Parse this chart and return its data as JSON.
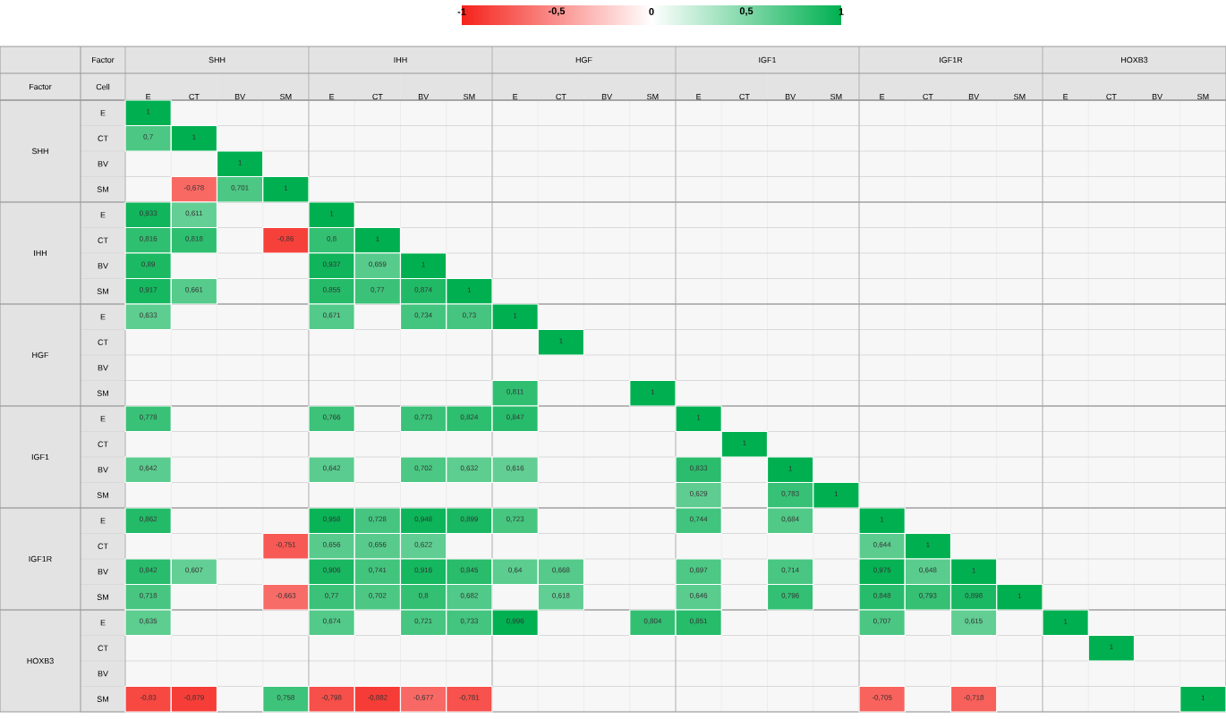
{
  "chart_data": {
    "type": "heatmap",
    "xlabel": "Factor",
    "ylabel": "Factor",
    "annotations": [
      "Cell",
      "SHH",
      "IHH",
      "HGF",
      "IGF1",
      "IGF1R",
      "HOXB3"
    ],
    "categories": [
      "E",
      "CT",
      "BV",
      "SM",
      "E",
      "CT",
      "BV",
      "SM",
      "E",
      "CT",
      "BV",
      "SM",
      "E",
      "CT",
      "BV",
      "SM",
      "E",
      "CT",
      "BV",
      "SM",
      "E",
      "CT",
      "BV",
      "SM"
    ],
    "y_categories": [
      "E",
      "CT",
      "BV",
      "SM",
      "E",
      "CT",
      "BV",
      "SM",
      "E",
      "CT",
      "BV",
      "SM",
      "E",
      "CT",
      "BV",
      "SM",
      "E",
      "CT",
      "BV",
      "SM",
      "E",
      "CT",
      "BV",
      "SM"
    ],
    "clim": [
      -1,
      1
    ],
    "cticks": [
      {
        "value": -1,
        "label": "-1"
      },
      {
        "value": -0.5,
        "label": "-0,5"
      },
      {
        "value": 0,
        "label": "0"
      },
      {
        "value": 0.5,
        "label": "0,5"
      },
      {
        "value": 1,
        "label": "1"
      }
    ],
    "cells": [
      [
        1,
        null,
        null,
        null,
        null,
        null,
        null,
        null,
        null,
        null,
        null,
        null,
        null,
        null,
        null,
        null,
        null,
        null,
        null,
        null,
        null,
        null,
        null,
        null
      ],
      [
        0.7,
        1,
        null,
        null,
        null,
        null,
        null,
        null,
        null,
        null,
        null,
        null,
        null,
        null,
        null,
        null,
        null,
        null,
        null,
        null,
        null,
        null,
        null,
        null
      ],
      [
        null,
        null,
        1,
        null,
        null,
        null,
        null,
        null,
        null,
        null,
        null,
        null,
        null,
        null,
        null,
        null,
        null,
        null,
        null,
        null,
        null,
        null,
        null,
        null
      ],
      [
        null,
        -0.678,
        0.701,
        1,
        null,
        null,
        null,
        null,
        null,
        null,
        null,
        null,
        null,
        null,
        null,
        null,
        null,
        null,
        null,
        null,
        null,
        null,
        null,
        null
      ],
      [
        0.933,
        0.611,
        null,
        null,
        1,
        null,
        null,
        null,
        null,
        null,
        null,
        null,
        null,
        null,
        null,
        null,
        null,
        null,
        null,
        null,
        null,
        null,
        null,
        null
      ],
      [
        0.816,
        0.818,
        null,
        -0.86,
        0.8,
        1,
        null,
        null,
        null,
        null,
        null,
        null,
        null,
        null,
        null,
        null,
        null,
        null,
        null,
        null,
        null,
        null,
        null,
        null
      ],
      [
        0.89,
        null,
        null,
        null,
        0.937,
        0.659,
        1,
        null,
        null,
        null,
        null,
        null,
        null,
        null,
        null,
        null,
        null,
        null,
        null,
        null,
        null,
        null,
        null,
        null
      ],
      [
        0.917,
        0.661,
        null,
        null,
        0.855,
        0.77,
        0.874,
        1,
        null,
        null,
        null,
        null,
        null,
        null,
        null,
        null,
        null,
        null,
        null,
        null,
        null,
        null,
        null,
        null
      ],
      [
        0.633,
        null,
        null,
        null,
        0.671,
        null,
        0.734,
        0.73,
        1,
        null,
        null,
        null,
        null,
        null,
        null,
        null,
        null,
        null,
        null,
        null,
        null,
        null,
        null,
        null
      ],
      [
        null,
        null,
        null,
        null,
        null,
        null,
        null,
        null,
        null,
        1,
        null,
        null,
        null,
        null,
        null,
        null,
        null,
        null,
        null,
        null,
        null,
        null,
        null,
        null
      ],
      [
        null,
        null,
        null,
        null,
        null,
        null,
        null,
        null,
        null,
        null,
        null,
        null,
        null,
        null,
        null,
        null,
        null,
        null,
        null,
        null,
        null,
        null,
        null,
        null
      ],
      [
        null,
        null,
        null,
        null,
        null,
        null,
        null,
        null,
        0.811,
        null,
        null,
        1,
        null,
        null,
        null,
        null,
        null,
        null,
        null,
        null,
        null,
        null,
        null,
        null
      ],
      [
        0.778,
        null,
        null,
        null,
        0.766,
        null,
        0.773,
        0.824,
        0.847,
        null,
        null,
        null,
        1,
        null,
        null,
        null,
        null,
        null,
        null,
        null,
        null,
        null,
        null,
        null
      ],
      [
        null,
        null,
        null,
        null,
        null,
        null,
        null,
        null,
        null,
        null,
        null,
        null,
        null,
        1,
        null,
        null,
        null,
        null,
        null,
        null,
        null,
        null,
        null,
        null
      ],
      [
        0.642,
        null,
        null,
        null,
        0.642,
        null,
        0.702,
        0.632,
        0.616,
        null,
        null,
        null,
        0.833,
        null,
        1,
        null,
        null,
        null,
        null,
        null,
        null,
        null,
        null,
        null
      ],
      [
        null,
        null,
        null,
        null,
        null,
        null,
        null,
        null,
        null,
        null,
        null,
        null,
        0.629,
        null,
        0.783,
        1,
        null,
        null,
        null,
        null,
        null,
        null,
        null,
        null
      ],
      [
        0.862,
        null,
        null,
        null,
        0.958,
        0.728,
        0.948,
        0.899,
        0.723,
        null,
        null,
        null,
        0.744,
        null,
        0.684,
        null,
        1,
        null,
        null,
        null,
        null,
        null,
        null,
        null
      ],
      [
        null,
        null,
        null,
        -0.751,
        0.656,
        0.656,
        0.622,
        null,
        null,
        null,
        null,
        null,
        null,
        null,
        null,
        null,
        0.644,
        1,
        null,
        null,
        null,
        null,
        null,
        null
      ],
      [
        0.842,
        0.607,
        null,
        null,
        0.906,
        0.741,
        0.916,
        0.845,
        0.64,
        0.668,
        null,
        null,
        0.697,
        null,
        0.714,
        null,
        0.975,
        0.648,
        1,
        null,
        null,
        null,
        null,
        null
      ],
      [
        0.718,
        null,
        null,
        -0.663,
        0.77,
        0.702,
        0.8,
        0.682,
        null,
        0.618,
        null,
        null,
        0.646,
        null,
        0.796,
        null,
        0.848,
        0.793,
        0.898,
        1,
        null,
        null,
        null,
        null
      ],
      [
        0.635,
        null,
        null,
        null,
        0.674,
        null,
        0.721,
        0.733,
        0.996,
        null,
        null,
        0.804,
        0.851,
        null,
        null,
        null,
        0.707,
        null,
        0.615,
        null,
        1,
        null,
        null,
        null
      ],
      [
        null,
        null,
        null,
        null,
        null,
        null,
        null,
        null,
        null,
        null,
        null,
        null,
        null,
        null,
        null,
        null,
        null,
        null,
        null,
        null,
        null,
        1,
        null,
        null
      ],
      [
        null,
        null,
        null,
        null,
        null,
        null,
        null,
        null,
        null,
        null,
        null,
        null,
        null,
        null,
        null,
        null,
        null,
        null,
        null,
        null,
        null,
        null,
        null,
        null
      ],
      [
        -0.83,
        -0.879,
        null,
        0.758,
        -0.798,
        -0.882,
        -0.677,
        -0.781,
        null,
        null,
        null,
        null,
        null,
        null,
        null,
        null,
        -0.705,
        null,
        -0.718,
        null,
        null,
        null,
        null,
        1
      ]
    ],
    "cell_labels": [
      [
        "1",
        null,
        null,
        null,
        null,
        null,
        null,
        null,
        null,
        null,
        null,
        null,
        null,
        null,
        null,
        null,
        null,
        null,
        null,
        null,
        null,
        null,
        null,
        null
      ],
      [
        "0,7",
        "1",
        null,
        null,
        null,
        null,
        null,
        null,
        null,
        null,
        null,
        null,
        null,
        null,
        null,
        null,
        null,
        null,
        null,
        null,
        null,
        null,
        null,
        null
      ],
      [
        null,
        null,
        "1",
        null,
        null,
        null,
        null,
        null,
        null,
        null,
        null,
        null,
        null,
        null,
        null,
        null,
        null,
        null,
        null,
        null,
        null,
        null,
        null,
        null
      ],
      [
        null,
        "-0,678",
        "0,701",
        "1",
        null,
        null,
        null,
        null,
        null,
        null,
        null,
        null,
        null,
        null,
        null,
        null,
        null,
        null,
        null,
        null,
        null,
        null,
        null,
        null
      ],
      [
        "0,933",
        "0,611",
        null,
        null,
        "1",
        null,
        null,
        null,
        null,
        null,
        null,
        null,
        null,
        null,
        null,
        null,
        null,
        null,
        null,
        null,
        null,
        null,
        null,
        null
      ],
      [
        "0,816",
        "0,818",
        null,
        "-0,86",
        "0,8",
        "1",
        null,
        null,
        null,
        null,
        null,
        null,
        null,
        null,
        null,
        null,
        null,
        null,
        null,
        null,
        null,
        null,
        null,
        null
      ],
      [
        "0,89",
        null,
        null,
        null,
        "0,937",
        "0,659",
        "1",
        null,
        null,
        null,
        null,
        null,
        null,
        null,
        null,
        null,
        null,
        null,
        null,
        null,
        null,
        null,
        null,
        null
      ],
      [
        "0,917",
        "0,661",
        null,
        null,
        "0,855",
        "0,77",
        "0,874",
        "1",
        null,
        null,
        null,
        null,
        null,
        null,
        null,
        null,
        null,
        null,
        null,
        null,
        null,
        null,
        null,
        null
      ],
      [
        "0,633",
        null,
        null,
        null,
        "0,671",
        null,
        "0,734",
        "0,73",
        "1",
        null,
        null,
        null,
        null,
        null,
        null,
        null,
        null,
        null,
        null,
        null,
        null,
        null,
        null,
        null
      ],
      [
        null,
        null,
        null,
        null,
        null,
        null,
        null,
        null,
        null,
        "1",
        null,
        null,
        null,
        null,
        null,
        null,
        null,
        null,
        null,
        null,
        null,
        null,
        null,
        null
      ],
      [
        null,
        null,
        null,
        null,
        null,
        null,
        null,
        null,
        null,
        null,
        null,
        null,
        null,
        null,
        null,
        null,
        null,
        null,
        null,
        null,
        null,
        null,
        null,
        null
      ],
      [
        null,
        null,
        null,
        null,
        null,
        null,
        null,
        null,
        "0,811",
        null,
        null,
        "1",
        null,
        null,
        null,
        null,
        null,
        null,
        null,
        null,
        null,
        null,
        null,
        null
      ],
      [
        "0,778",
        null,
        null,
        null,
        "0,766",
        null,
        "0,773",
        "0,824",
        "0,847",
        null,
        null,
        null,
        "1",
        null,
        null,
        null,
        null,
        null,
        null,
        null,
        null,
        null,
        null,
        null
      ],
      [
        null,
        null,
        null,
        null,
        null,
        null,
        null,
        null,
        null,
        null,
        null,
        null,
        null,
        "1",
        null,
        null,
        null,
        null,
        null,
        null,
        null,
        null,
        null,
        null
      ],
      [
        "0,642",
        null,
        null,
        null,
        "0,642",
        null,
        "0,702",
        "0,632",
        "0,616",
        null,
        null,
        null,
        "0,833",
        null,
        "1",
        null,
        null,
        null,
        null,
        null,
        null,
        null,
        null,
        null
      ],
      [
        null,
        null,
        null,
        null,
        null,
        null,
        null,
        null,
        null,
        null,
        null,
        null,
        "0,629",
        null,
        "0,783",
        "1",
        null,
        null,
        null,
        null,
        null,
        null,
        null,
        null
      ],
      [
        "0,862",
        null,
        null,
        null,
        "0,958",
        "0,728",
        "0,948",
        "0,899",
        "0,723",
        null,
        null,
        null,
        "0,744",
        null,
        "0,684",
        null,
        "1",
        null,
        null,
        null,
        null,
        null,
        null,
        null
      ],
      [
        null,
        null,
        null,
        "-0,751",
        "0,656",
        "0,656",
        "0,622",
        null,
        null,
        null,
        null,
        null,
        null,
        null,
        null,
        null,
        "0,644",
        "1",
        null,
        null,
        null,
        null,
        null,
        null
      ],
      [
        "0,842",
        "0,607",
        null,
        null,
        "0,906",
        "0,741",
        "0,916",
        "0,845",
        "0,64",
        "0,668",
        null,
        null,
        "0,697",
        null,
        "0,714",
        null,
        "0,975",
        "0,648",
        "1",
        null,
        null,
        null,
        null,
        null
      ],
      [
        "0,718",
        null,
        null,
        "-0,663",
        "0,77",
        "0,702",
        "0,8",
        "0,682",
        null,
        "0,618",
        null,
        null,
        "0,646",
        null,
        "0,796",
        null,
        "0,848",
        "0,793",
        "0,898",
        "1",
        null,
        null,
        null,
        null
      ],
      [
        "0,635",
        null,
        null,
        null,
        "0,674",
        null,
        "0,721",
        "0,733",
        "0,996",
        null,
        null,
        "0,804",
        "0,851",
        null,
        null,
        null,
        "0,707",
        null,
        "0,615",
        null,
        "1",
        null,
        null,
        null
      ],
      [
        null,
        null,
        null,
        null,
        null,
        null,
        null,
        null,
        null,
        null,
        null,
        null,
        null,
        null,
        null,
        null,
        null,
        null,
        null,
        null,
        null,
        "1",
        null,
        null
      ],
      [
        null,
        null,
        null,
        null,
        null,
        null,
        null,
        null,
        null,
        null,
        null,
        null,
        null,
        null,
        null,
        null,
        null,
        null,
        null,
        null,
        null,
        null,
        null,
        null
      ],
      [
        "-0,83",
        "-0,879",
        null,
        "0,758",
        "-0,798",
        "-0,882",
        "-0,677",
        "-0,781",
        null,
        null,
        null,
        null,
        null,
        null,
        null,
        null,
        "-0,705",
        null,
        "-0,718",
        null,
        null,
        null,
        null,
        "1"
      ]
    ]
  }
}
